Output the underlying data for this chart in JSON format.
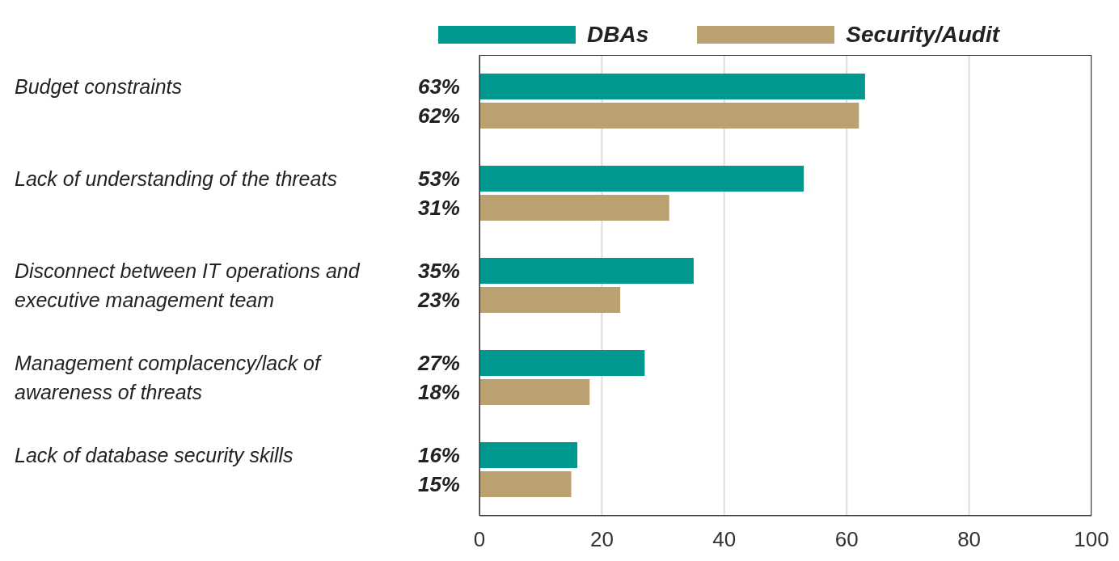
{
  "chart_data": {
    "type": "bar",
    "orientation": "horizontal",
    "categories": [
      "Budget constraints",
      "Lack of understanding of the threats",
      "Disconnect between IT operations and executive management team",
      "Management complacency/lack of awareness of threats",
      "Lack of database security skills"
    ],
    "series": [
      {
        "name": "DBAs",
        "color": "#009990",
        "values": [
          63,
          53,
          35,
          27,
          16
        ],
        "value_labels": [
          "63%",
          "53%",
          "35%",
          "27%",
          "16%"
        ]
      },
      {
        "name": "Security/Audit",
        "color": "#bba071",
        "values": [
          62,
          31,
          23,
          18,
          15
        ],
        "value_labels": [
          "62%",
          "31%",
          "23%",
          "18%",
          "15%"
        ]
      }
    ],
    "xlim": [
      0,
      100
    ],
    "xticks": [
      0,
      20,
      40,
      60,
      80,
      100
    ],
    "grid": "x",
    "legend": "top"
  }
}
